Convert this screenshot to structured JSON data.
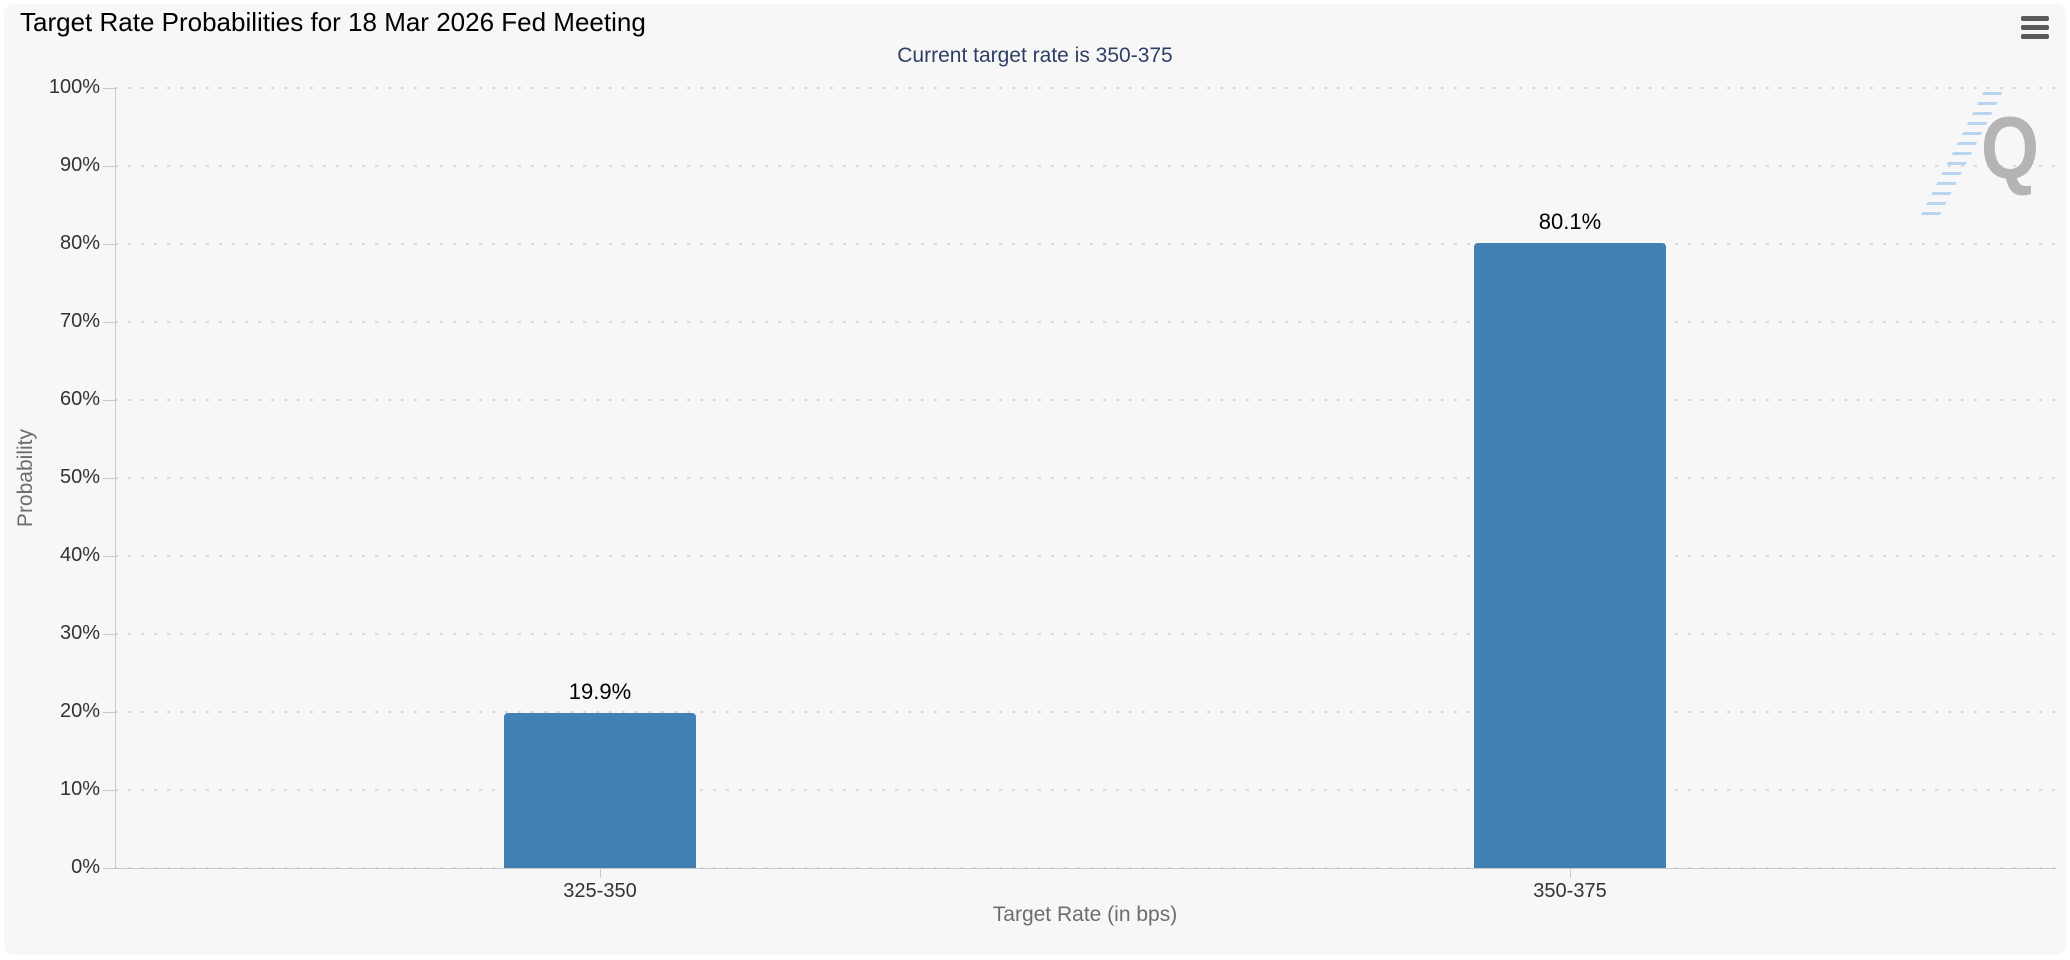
{
  "controls": {
    "context_menu_icon": "hamburger-menu-icon"
  },
  "watermark": {
    "letter": "Q"
  },
  "chart_data": {
    "type": "bar",
    "title": "Target Rate Probabilities for 18 Mar 2026 Fed Meeting",
    "subtitle": "Current target rate is 350-375",
    "categories": [
      "325-350",
      "350-375"
    ],
    "values": [
      19.9,
      80.1
    ],
    "value_labels": [
      "19.9%",
      "80.1%"
    ],
    "xlabel": "Target Rate (in bps)",
    "ylabel": "Probability",
    "ylim": [
      0,
      100
    ],
    "ytick_step": 10,
    "ytick_labels": [
      "0%",
      "10%",
      "20%",
      "30%",
      "40%",
      "50%",
      "60%",
      "70%",
      "80%",
      "90%",
      "100%"
    ],
    "grid": "dotted-horizontal",
    "legend": "none",
    "colors": {
      "bar": "#4380b4",
      "subtitle": "#2e3f66",
      "panel_background": "#f7f7f7",
      "axis_line": "#c9c9c9",
      "grid_dot": "#d9d9d9",
      "tick_label": "#333333",
      "axis_title": "#6d6d6d"
    }
  }
}
